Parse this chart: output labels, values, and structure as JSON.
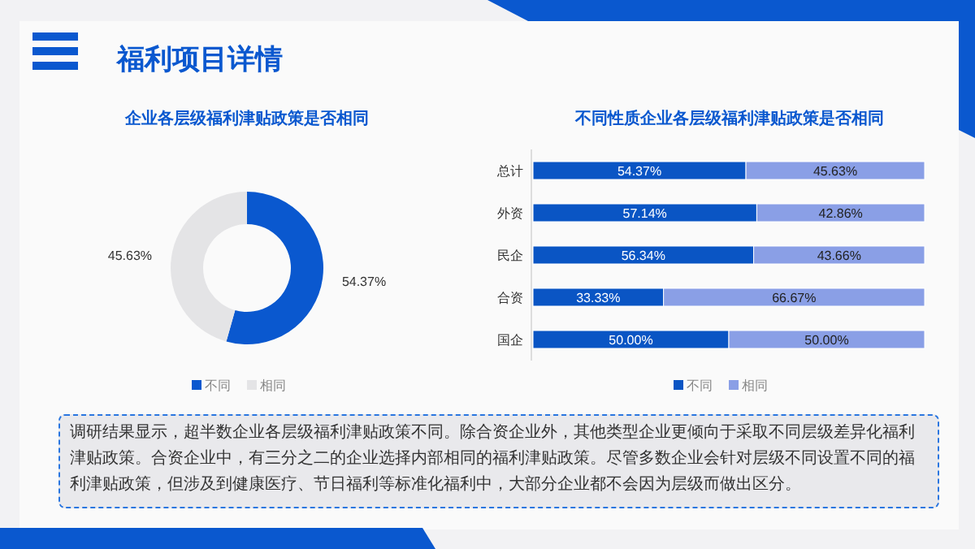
{
  "chart_data": [
    {
      "type": "donut",
      "title": "企业各层级福利津贴政策是否相同",
      "categories": [
        "不同",
        "相同"
      ],
      "values": [
        54.37,
        45.63
      ],
      "colors": [
        "#0a58cf",
        "#e4e4e6"
      ],
      "value_labels": [
        "54.37%",
        "45.63%"
      ],
      "legend": "bottom",
      "annotations": [
        "福利项目详情"
      ]
    },
    {
      "type": "bar",
      "orientation": "horizontal",
      "stacked": true,
      "title": "不同性质企业各层级福利津贴政策是否相同",
      "categories": [
        "总计",
        "外资",
        "民企",
        "合资",
        "国企"
      ],
      "xlim": [
        0,
        100
      ],
      "tick_labels": "y",
      "legend": "bottom",
      "series": [
        {
          "name": "不同",
          "color": "#0a55c4",
          "values": [
            54.37,
            57.14,
            56.34,
            33.33,
            50.0
          ],
          "value_labels": [
            "54.37%",
            "57.14%",
            "56.34%",
            "33.33%",
            "50.00%"
          ]
        },
        {
          "name": "相同",
          "color": "#8a9fe6",
          "values": [
            45.63,
            42.86,
            43.66,
            66.67,
            50.0
          ],
          "value_labels": [
            "45.63%",
            "42.86%",
            "43.66%",
            "66.67%",
            "50.00%"
          ]
        }
      ],
      "annotations": [
        "调研结果显示，超半数企业各层级福利津贴政策不同。除合资企业外，其他类型企业更倾向于采取不同层级差异化福利津贴政策。合资企业中，有三分之二的企业选择内部相同的福利津贴政策。尽管多数企业会针对层级不同设置不同的福利津贴政策，但涉及到健康医疗、节日福利等标准化福利中，大部分企业都不会因为层级而做出区分。"
      ]
    }
  ]
}
